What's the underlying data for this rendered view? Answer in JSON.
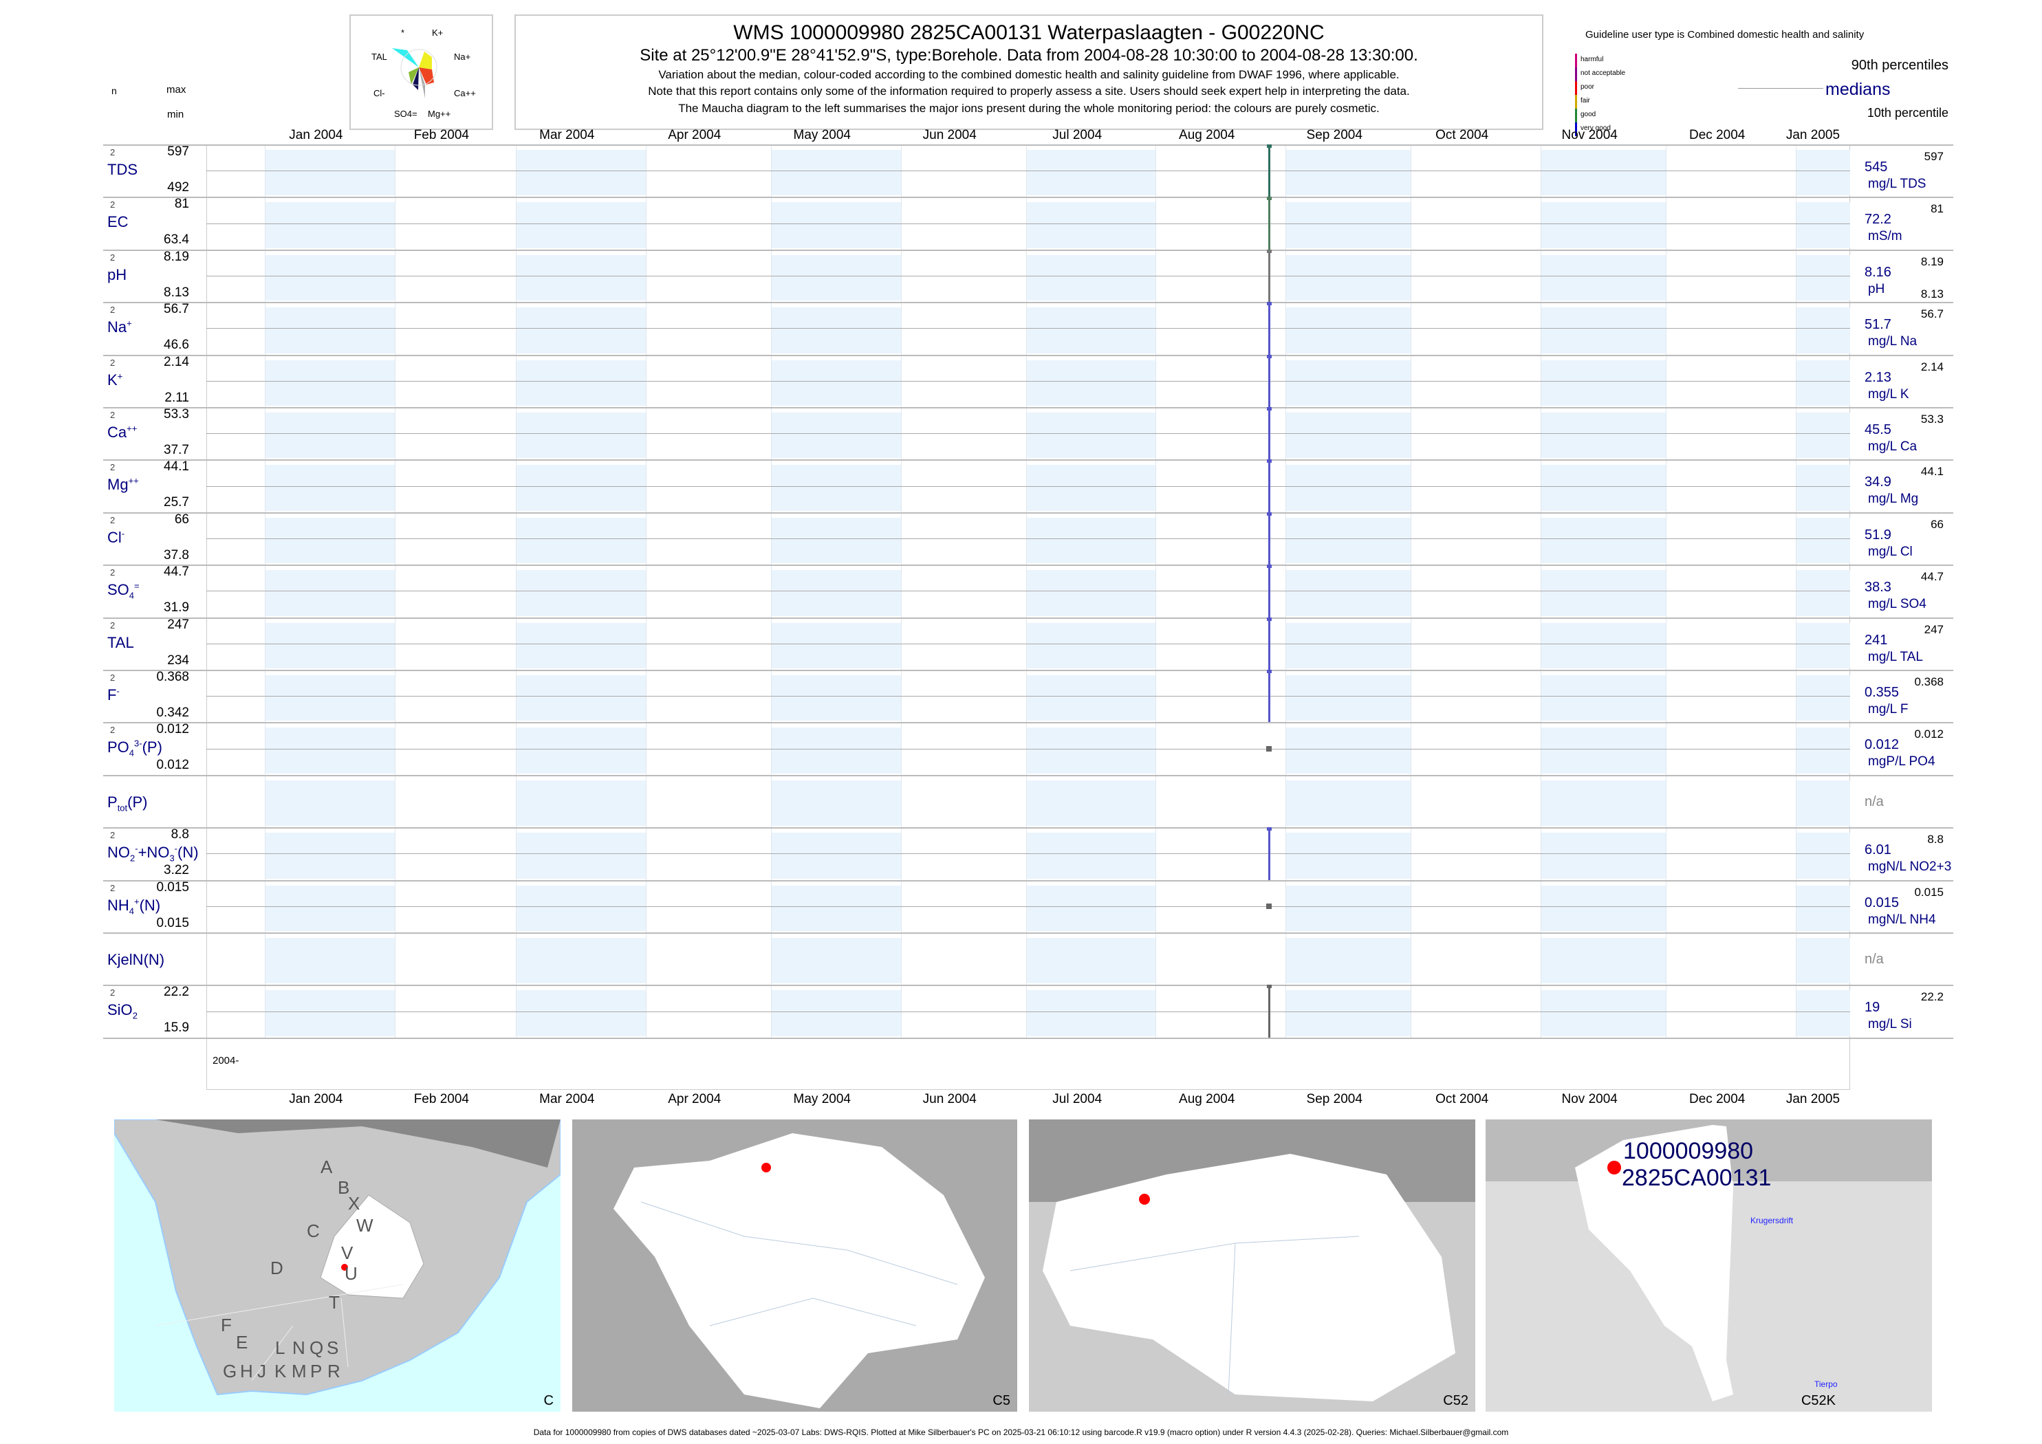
{
  "maucha": {
    "labels": [
      "*",
      "K+",
      "TAL",
      "Na+",
      "Cl-",
      "Ca++",
      "SO4=",
      "Mg++"
    ]
  },
  "title": {
    "line1": "WMS 1000009980 2825CA00131 Waterpaslaagten - G00220NC",
    "line2": "Site at 25°12'00.9\"E 28°41'52.9\"S, type:Borehole.  Data from 2004-08-28 10:30:00 to 2004-08-28 13:30:00.",
    "line3": "Variation about the median,  colour-coded according to the combined domestic health and salinity guideline from DWAF 1996, where applicable.",
    "line4": "Note that this report contains only some of the information required to properly assess a site. Users should seek expert help in interpreting the data.",
    "line5": "The Maucha diagram to the left summarises the major ions present during the whole monitoring period: the colours are purely cosmetic."
  },
  "legend": {
    "guideline": "Guideline user type is Combined domestic health and salinity",
    "classes": [
      {
        "label": "harmful",
        "color": "#cc0077"
      },
      {
        "label": "not acceptable",
        "color": "#880088"
      },
      {
        "label": "poor",
        "color": "#ee0000"
      },
      {
        "label": "fair",
        "color": "#ccaa00"
      },
      {
        "label": "good",
        "color": "#228833"
      },
      {
        "label": "very good",
        "color": "#0000cc"
      }
    ],
    "p90": "90th percentiles",
    "medians": "medians",
    "p10": "10th percentile"
  },
  "columns": {
    "n": "n",
    "max": "max",
    "min": "min"
  },
  "chart_data": {
    "type": "barcode-timeseries",
    "x_range": [
      "2003-12-18",
      "2005-01-14"
    ],
    "months": [
      "Jan 2004",
      "Feb 2004",
      "Mar 2004",
      "Apr 2004",
      "May 2004",
      "Jun 2004",
      "Jul 2004",
      "Aug 2004",
      "Sep 2004",
      "Oct 2004",
      "Nov 2004",
      "Dec 2004",
      "Jan 2005"
    ],
    "month_dates": [
      "2004-01-01",
      "2004-02-01",
      "2004-03-01",
      "2004-04-01",
      "2004-05-01",
      "2004-06-01",
      "2004-07-01",
      "2004-08-01",
      "2004-09-01",
      "2004-10-01",
      "2004-11-01",
      "2004-12-01",
      "2005-01-01"
    ],
    "sample_date": "2004-08-28",
    "year_label": "2004-",
    "rows": [
      {
        "parts": [
          [
            "TDS"
          ]
        ],
        "n": "2",
        "max": "597",
        "min": "492",
        "median": "545",
        "unit": "mg/L TDS",
        "upper": "597",
        "kind": "line",
        "color": "#2f6f5f"
      },
      {
        "parts": [
          [
            "EC"
          ]
        ],
        "n": "2",
        "max": "81",
        "min": "63.4",
        "median": "72.2",
        "unit": "mS/m",
        "upper": "81",
        "kind": "line",
        "color": "#4f7f5f"
      },
      {
        "parts": [
          [
            "pH"
          ]
        ],
        "n": "2",
        "max": "8.19",
        "min": "8.13",
        "median": "8.16",
        "unit": "pH",
        "upper": "8.19",
        "lower": "8.13",
        "kind": "line",
        "color": "#777777"
      },
      {
        "parts": [
          [
            "Na"
          ],
          [
            "+",
            "sup"
          ]
        ],
        "n": "2",
        "max": "56.7",
        "min": "46.6",
        "median": "51.7",
        "unit": "mg/L Na",
        "upper": "56.7",
        "kind": "line",
        "color": "#5555cc"
      },
      {
        "parts": [
          [
            "K"
          ],
          [
            "+",
            "sup"
          ]
        ],
        "n": "2",
        "max": "2.14",
        "min": "2.11",
        "median": "2.13",
        "unit": "mg/L K",
        "upper": "2.14",
        "kind": "line",
        "color": "#5555cc"
      },
      {
        "parts": [
          [
            "Ca"
          ],
          [
            "++",
            "sup"
          ]
        ],
        "n": "2",
        "max": "53.3",
        "min": "37.7",
        "median": "45.5",
        "unit": "mg/L Ca",
        "upper": "53.3",
        "kind": "line",
        "color": "#5555cc"
      },
      {
        "parts": [
          [
            "Mg"
          ],
          [
            "++",
            "sup"
          ]
        ],
        "n": "2",
        "max": "44.1",
        "min": "25.7",
        "median": "34.9",
        "unit": "mg/L Mg",
        "upper": "44.1",
        "kind": "line",
        "color": "#5555cc"
      },
      {
        "parts": [
          [
            "Cl"
          ],
          [
            "-",
            "sup"
          ]
        ],
        "n": "2",
        "max": "66",
        "min": "37.8",
        "median": "51.9",
        "unit": "mg/L Cl",
        "upper": "66",
        "kind": "line",
        "color": "#5555cc"
      },
      {
        "parts": [
          [
            "SO"
          ],
          [
            "4",
            "sub"
          ],
          [
            "=",
            "sup"
          ]
        ],
        "n": "2",
        "max": "44.7",
        "min": "31.9",
        "median": "38.3",
        "unit": "mg/L SO4",
        "upper": "44.7",
        "kind": "line",
        "color": "#5555cc"
      },
      {
        "parts": [
          [
            "TAL"
          ]
        ],
        "n": "2",
        "max": "247",
        "min": "234",
        "median": "241",
        "unit": "mg/L TAL",
        "upper": "247",
        "kind": "line",
        "color": "#5555cc"
      },
      {
        "parts": [
          [
            "F"
          ],
          [
            "-",
            "sup"
          ]
        ],
        "n": "2",
        "max": "0.368",
        "min": "0.342",
        "median": "0.355",
        "unit": "mg/L F",
        "upper": "0.368",
        "kind": "line",
        "color": "#5555cc"
      },
      {
        "parts": [
          [
            "PO"
          ],
          [
            "4",
            "sub"
          ],
          [
            "3-",
            "sup"
          ],
          [
            "(P)"
          ]
        ],
        "n": "2",
        "max": "0.012",
        "min": "0.012",
        "median": "0.012",
        "unit": "mgP/L PO4",
        "upper": "0.012",
        "kind": "point",
        "color": "#666666"
      },
      {
        "parts": [
          [
            "P"
          ],
          [
            "tot",
            "sub"
          ],
          [
            "(P)"
          ]
        ],
        "na": "n/a"
      },
      {
        "parts": [
          [
            "NO"
          ],
          [
            "2",
            "sub"
          ],
          [
            "-",
            "sup"
          ],
          [
            "+NO"
          ],
          [
            "3",
            "sub"
          ],
          [
            "-",
            "sup"
          ],
          [
            "(N)"
          ]
        ],
        "n": "2",
        "max": "8.8",
        "min": "3.22",
        "median": "6.01",
        "unit": "mgN/L NO2+3",
        "upper": "8.8",
        "kind": "line",
        "color": "#5555cc"
      },
      {
        "parts": [
          [
            "NH"
          ],
          [
            "4",
            "sub"
          ],
          [
            "+",
            "sup"
          ],
          [
            "(N)"
          ]
        ],
        "n": "2",
        "max": "0.015",
        "min": "0.015",
        "median": "0.015",
        "unit": "mgN/L NH4",
        "upper": "0.015",
        "kind": "point",
        "color": "#666666"
      },
      {
        "parts": [
          [
            "KjelN(N)"
          ]
        ],
        "na": "n/a"
      },
      {
        "parts": [
          [
            "SiO"
          ],
          [
            "2",
            "sub"
          ]
        ],
        "n": "2",
        "max": "22.2",
        "min": "15.9",
        "median": "19",
        "unit": "mg/L Si",
        "upper": "22.2",
        "kind": "line",
        "color": "#666666"
      }
    ]
  },
  "maps": [
    {
      "label": "C",
      "regions": [
        "A",
        "B",
        "X",
        "W",
        "C",
        "V",
        "U",
        "D",
        "T",
        "F",
        "E",
        "G",
        "H",
        "J",
        "K",
        "L",
        "M",
        "N",
        "P",
        "Q",
        "R",
        "S"
      ]
    },
    {
      "label": "C5"
    },
    {
      "label": "C52"
    },
    {
      "label": "C52K",
      "site_id": "1000009980",
      "site_code": "2825CA00131",
      "places": [
        "Krugersdrift",
        "Tierpo"
      ]
    }
  ],
  "footer": "Data for 1000009980 from copies of DWS databases dated ~2025-03-07 Labs: DWS-RQIS. Plotted at Mike Silberbauer's PC on 2025-03-21 06:10:12 using barcode.R v19.9 (macro option) under R version 4.4.3 (2025-02-28). Queries: Michael.Silberbauer@gmail.com"
}
